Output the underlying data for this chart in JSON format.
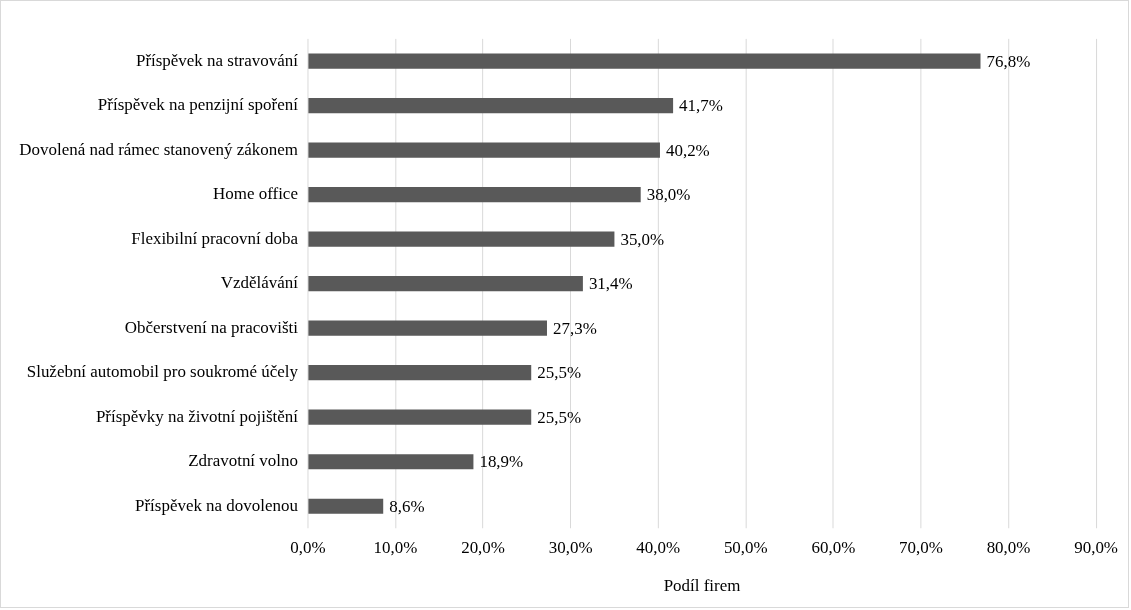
{
  "chart_data": {
    "type": "bar",
    "orientation": "horizontal",
    "xlabel": "Podíl firem",
    "categories": [
      "Příspěvek na stravování",
      "Příspěvek na penzijní spoření",
      "Dovolená nad rámec stanovený zákonem",
      "Home office",
      "Flexibilní pracovní doba",
      "Vzdělávání",
      "Občerstvení na pracovišti",
      "Služební automobil pro soukromé účely",
      "Příspěvky na životní pojištění",
      "Zdravotní volno",
      "Příspěvek na dovolenou"
    ],
    "values": [
      76.8,
      41.7,
      40.2,
      38.0,
      35.0,
      31.4,
      27.3,
      25.5,
      25.5,
      18.9,
      8.6
    ],
    "value_labels": [
      "76,8%",
      "41,7%",
      "40,2%",
      "38,0%",
      "35,0%",
      "31,4%",
      "27,3%",
      "25,5%",
      "25,5%",
      "18,9%",
      "8,6%"
    ],
    "color": "#595959",
    "xlim": [
      0,
      90
    ],
    "xticks": [
      {
        "value": 0,
        "label": "0,0%"
      },
      {
        "value": 10,
        "label": "10,0%"
      },
      {
        "value": 20,
        "label": "20,0%"
      },
      {
        "value": 30,
        "label": "30,0%"
      },
      {
        "value": 40,
        "label": "40,0%"
      },
      {
        "value": 50,
        "label": "50,0%"
      },
      {
        "value": 60,
        "label": "60,0%"
      },
      {
        "value": 70,
        "label": "70,0%"
      },
      {
        "value": 80,
        "label": "80,0%"
      },
      {
        "value": 90,
        "label": "90,0%"
      }
    ],
    "grid": "x",
    "legend": false
  }
}
